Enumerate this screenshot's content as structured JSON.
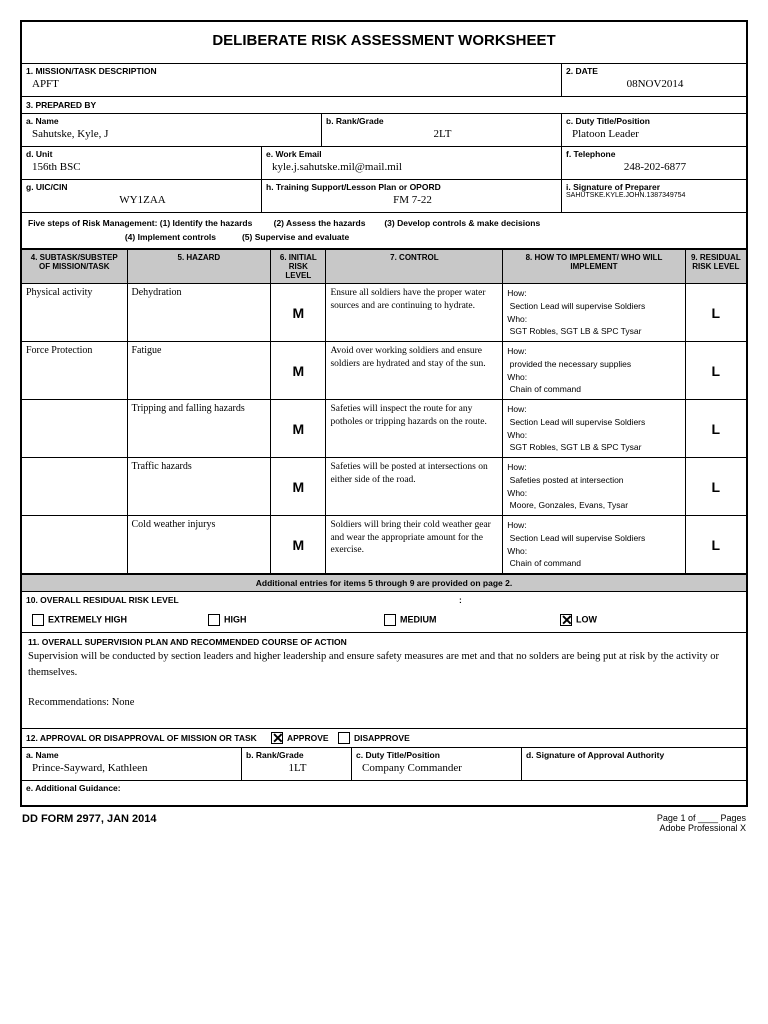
{
  "title": "DELIBERATE RISK ASSESSMENT WORKSHEET",
  "s1": {
    "label": "1.  MISSION/TASK DESCRIPTION",
    "value": "APFT"
  },
  "s2": {
    "label": "2.  DATE",
    "value": "08NOV2014"
  },
  "s3": {
    "label": "3.  PREPARED BY"
  },
  "a": {
    "label": "a.  Name",
    "value": "Sahutske, Kyle, J"
  },
  "b": {
    "label": "b.  Rank/Grade",
    "value": "2LT"
  },
  "c": {
    "label": "c.  Duty Title/Position",
    "value": "Platoon Leader"
  },
  "d": {
    "label": "d.  Unit",
    "value": "156th BSC"
  },
  "e": {
    "label": "e.  Work Email",
    "value": "kyle.j.sahutske.mil@mail.mil"
  },
  "f": {
    "label": "f.  Telephone",
    "value": "248-202-6877"
  },
  "g": {
    "label": "g.  UIC/CIN",
    "value": "WY1ZAA"
  },
  "h": {
    "label": "h.  Training Support/Lesson Plan or OPORD",
    "value": "FM 7-22"
  },
  "i": {
    "label": "i.  Signature of Preparer",
    "value": "SAHUTSKE.KYLE.JOHN.1387349754"
  },
  "steps": {
    "l1": "Five steps of Risk Management: (1) Identify the hazards",
    "l2": "(2) Assess the hazards",
    "l3": "(3) Develop controls & make decisions",
    "l4": "(4) Implement controls",
    "l5": "(5) Supervise and evaluate"
  },
  "headers": {
    "c4": "4.  SUBTASK/SUBSTEP OF MISSION/TASK",
    "c5": "5.  HAZARD",
    "c6": "6.  INITIAL RISK LEVEL",
    "c7": "7.  CONTROL",
    "c8": "8.  HOW TO IMPLEMENT/ WHO WILL IMPLEMENT",
    "c9": "9.  RESIDUAL RISK LEVEL"
  },
  "rows": [
    {
      "subtask": "Physical activity",
      "hazard": "Dehydration",
      "initial": "M",
      "control": "Ensure all soldiers have the proper water sources and are continuing to hydrate.",
      "how": "Section Lead will supervise Soldiers",
      "who": "SGT Robles, SGT LB & SPC Tysar",
      "residual": "L"
    },
    {
      "subtask": "Force Protection",
      "hazard": "Fatigue",
      "initial": "M",
      "control": "Avoid over working soldiers and ensure soldiers are hydrated and stay of the sun.",
      "how": "provided the necessary supplies",
      "who": "Chain of command",
      "residual": "L"
    },
    {
      "subtask": "",
      "hazard": "Tripping and falling hazards",
      "initial": "M",
      "control": "Safeties will inspect the route for any potholes or tripping hazards on the route.",
      "how": "Section Lead will supervise Soldiers",
      "who": "SGT Robles, SGT LB & SPC Tysar",
      "residual": "L"
    },
    {
      "subtask": "",
      "hazard": "Traffic hazards",
      "initial": "M",
      "control": "Safeties will be posted at intersections on either side of the road.",
      "how": "Safeties posted at intersection",
      "who": "Moore, Gonzales, Evans, Tysar",
      "residual": "L"
    },
    {
      "subtask": "",
      "hazard": "Cold weather injurys",
      "initial": "M",
      "control": "Soldiers will bring their cold weather gear and wear the appropriate amount for the exercise.",
      "how": "Section Lead will supervise Soldiers",
      "who": "Chain of command",
      "residual": "L"
    }
  ],
  "addl": "Additional entries for items 5 through 9 are provided on page 2.",
  "s10": {
    "label": "10.  OVERALL RESIDUAL RISK LEVEL",
    "opts": [
      "EXTREMELY HIGH",
      "HIGH",
      "MEDIUM",
      "LOW"
    ],
    "checked": 3
  },
  "s11": {
    "label": "11.  OVERALL SUPERVISION PLAN  AND RECOMMENDED COURSE OF ACTION",
    "text": "Supervision will be conducted by section leaders and higher leadership and  ensure safety measures are met and that no solders are being put at risk by the activity or themselves.",
    "rec": "Recommendations: None"
  },
  "s12": {
    "label": "12.  APPROVAL OR DISAPPROVAL OF MISSION OR TASK",
    "approve": "APPROVE",
    "disapprove": "DISAPPROVE",
    "checked": 0
  },
  "ap": {
    "a": {
      "label": "a.  Name",
      "value": "Prince-Sayward, Kathleen"
    },
    "b": {
      "label": "b.  Rank/Grade",
      "value": "1LT"
    },
    "c": {
      "label": "c.  Duty Title/Position",
      "value": "Company Commander"
    },
    "d": {
      "label": "d.  Signature of Approval Authority"
    },
    "e": {
      "label": "e.  Additional Guidance:"
    }
  },
  "footer": {
    "form": "DD FORM 2977, JAN 2014",
    "page": "Page 1 of ____ Pages",
    "adobe": "Adobe Professional X"
  }
}
